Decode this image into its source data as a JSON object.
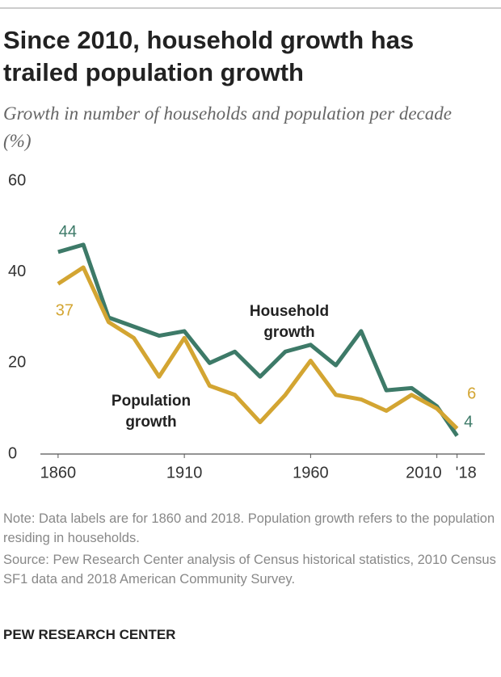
{
  "title": "Since 2010, household growth has trailed population growth",
  "subtitle": "Growth in number of households and population per decade (%)",
  "chart_data": {
    "type": "line",
    "x": [
      1860,
      1870,
      1880,
      1890,
      1900,
      1910,
      1920,
      1930,
      1940,
      1950,
      1960,
      1970,
      1980,
      1990,
      2000,
      2010,
      2018
    ],
    "series": [
      {
        "name": "Household growth",
        "color": "#3d7a68",
        "values": [
          44.4,
          46,
          30,
          28,
          26,
          27,
          20,
          22.5,
          17,
          22.5,
          24,
          19.5,
          27,
          14,
          14.5,
          10.5,
          4
        ],
        "value_labels": [
          "44",
          null,
          null,
          null,
          null,
          null,
          null,
          null,
          null,
          null,
          null,
          null,
          null,
          null,
          null,
          null,
          "4"
        ]
      },
      {
        "name": "Population growth",
        "color": "#d3a532",
        "values": [
          37.4,
          41,
          29,
          25.5,
          17,
          25.5,
          15,
          13,
          7,
          13,
          20.5,
          13,
          12,
          9.5,
          13,
          10,
          5.6
        ],
        "value_labels": [
          "37",
          null,
          null,
          null,
          null,
          null,
          null,
          null,
          null,
          null,
          null,
          null,
          null,
          null,
          null,
          null,
          "6"
        ]
      }
    ],
    "xlim": [
      1853,
      2029
    ],
    "xticks": [
      1860,
      1910,
      1960,
      2010,
      {
        "value": 2018,
        "label": "'18"
      }
    ],
    "ylim": [
      0,
      60
    ],
    "yticks": [
      0,
      20,
      40,
      60
    ],
    "grid": false
  },
  "note": "Note: Data labels are for 1860 and 2018. Population growth refers to the population residing in households.",
  "source": "Source: Pew Research Center analysis of Census historical statistics, 2010 Census SF1 data and 2018 American Community Survey.",
  "footer": "PEW RESEARCH CENTER"
}
